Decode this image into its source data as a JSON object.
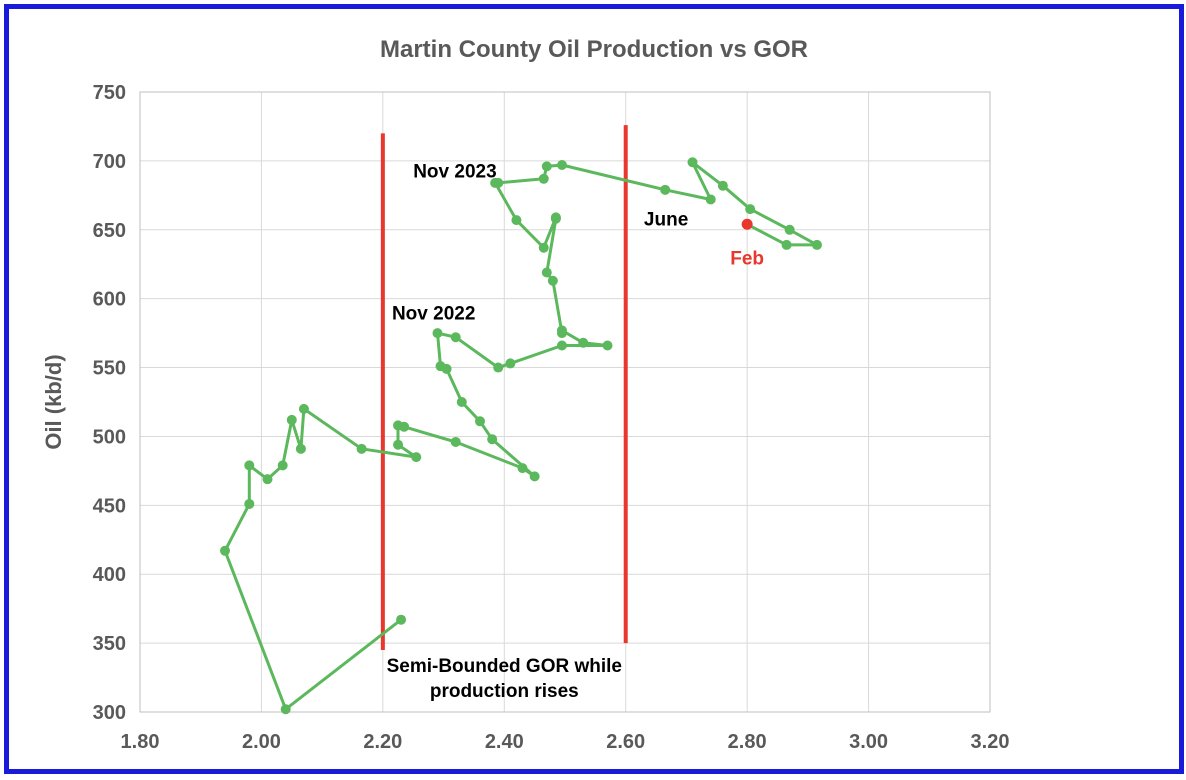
{
  "chart_data": {
    "type": "scatter",
    "title": "Martin County Oil Production vs GOR",
    "xlabel": "",
    "ylabel": "Oil (kb/d)",
    "xlim": [
      1.8,
      3.2
    ],
    "ylim": [
      300,
      750
    ],
    "xticks": [
      "1.80",
      "2.00",
      "2.20",
      "2.40",
      "2.60",
      "2.80",
      "3.00",
      "3.20"
    ],
    "yticks": [
      "300",
      "350",
      "400",
      "450",
      "500",
      "550",
      "600",
      "650",
      "700",
      "750"
    ],
    "grid": true,
    "colors": {
      "series": "#5cb85c",
      "highlight": "#e8372c",
      "bound": "#e8372c",
      "frame": "#1a1adb"
    },
    "series": [
      {
        "x": [
          2.23,
          2.04,
          1.94,
          1.98,
          1.98,
          2.01,
          2.035,
          2.05,
          2.065,
          2.07,
          2.165,
          2.255,
          2.225,
          2.225,
          2.235,
          2.32,
          2.43,
          2.45,
          2.38,
          2.36,
          2.33,
          2.305,
          2.295,
          2.29,
          2.32,
          2.39,
          2.41,
          2.495,
          2.57,
          2.53,
          2.495,
          2.495,
          2.48,
          2.47,
          2.485,
          2.485,
          2.465,
          2.42,
          2.385,
          2.39,
          2.465,
          2.47,
          2.495,
          2.665,
          2.74,
          2.71,
          2.76,
          2.805,
          2.87,
          2.915,
          2.865,
          2.8
        ],
        "y": [
          367,
          302,
          417,
          451,
          479,
          469,
          479,
          512,
          491,
          520,
          491,
          485,
          494,
          508,
          507,
          496,
          477,
          471,
          498,
          511,
          525,
          549,
          551,
          575,
          572,
          550,
          553,
          566,
          566,
          568,
          577,
          575,
          613,
          619,
          658,
          659,
          637,
          657,
          684,
          684,
          687,
          696,
          697,
          679,
          672,
          699,
          682,
          665,
          650,
          639,
          639,
          654
        ]
      }
    ],
    "highlight_points": [
      {
        "label": "Feb",
        "x": 2.8,
        "y": 654,
        "color": "#e8372c"
      }
    ],
    "bound_lines": [
      {
        "x": 2.2,
        "y0": 345,
        "y1": 720
      },
      {
        "x": 2.6,
        "y0": 350,
        "y1": 726
      }
    ],
    "annotations": [
      {
        "text": "Nov 2023",
        "x": 2.25,
        "y": 688,
        "anchor": "start"
      },
      {
        "text": "Nov 2022",
        "x": 2.215,
        "y": 585,
        "anchor": "start"
      },
      {
        "text": "June",
        "x": 2.63,
        "y": 653,
        "anchor": "start"
      },
      {
        "text": "Semi-Bounded GOR while",
        "x": 2.4,
        "y": 329,
        "anchor": "middle"
      },
      {
        "text": "production rises",
        "x": 2.4,
        "y": 311,
        "anchor": "middle"
      }
    ]
  }
}
